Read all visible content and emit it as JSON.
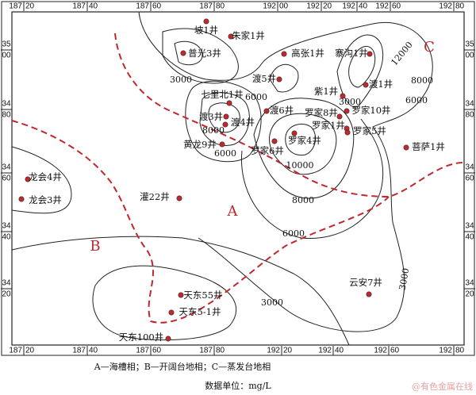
{
  "map": {
    "frame_labels": {
      "top": [
        {
          "deg": "187",
          "min": "20"
        },
        {
          "deg": "187",
          "min": "40"
        },
        {
          "deg": "187",
          "min": "60"
        },
        {
          "deg": "187",
          "min": "80"
        },
        {
          "deg": "192",
          "min": "00"
        },
        {
          "deg": "192",
          "min": "20"
        },
        {
          "deg": "192",
          "min": "40"
        },
        {
          "deg": "192",
          "min": "60"
        },
        {
          "deg": "192",
          "min": "80"
        }
      ],
      "bottom": [
        {
          "deg": "187",
          "min": "20"
        },
        {
          "deg": "187",
          "min": "40"
        },
        {
          "deg": "187",
          "min": "60"
        },
        {
          "deg": "187",
          "min": "80"
        },
        {
          "deg": "192",
          "min": "20"
        },
        {
          "deg": "192",
          "min": "40"
        },
        {
          "deg": "192",
          "min": "60"
        },
        {
          "deg": "192",
          "min": "80"
        }
      ],
      "left": [
        {
          "deg": "35",
          "min": "00"
        },
        {
          "deg": "34",
          "min": "80"
        },
        {
          "deg": "34",
          "min": "60"
        },
        {
          "deg": "34",
          "min": "40"
        },
        {
          "deg": "34",
          "min": "20"
        }
      ],
      "right": [
        {
          "deg": "35",
          "min": "00"
        },
        {
          "deg": "34",
          "min": "80"
        },
        {
          "deg": "34",
          "min": "60"
        },
        {
          "deg": "34",
          "min": "40"
        },
        {
          "deg": "34",
          "min": "20"
        }
      ]
    },
    "wells": [
      "坡1井",
      "朱家1井",
      "普光3井",
      "高张1井",
      "寨沟1井",
      "渡5井",
      "紫1井",
      "渡1井",
      "七里北1井",
      "渡3井",
      "渡4井",
      "渡6井",
      "罗家8井",
      "罗家10井",
      "罗家1井",
      "罗家5井",
      "罗家4井",
      "黄龙9井",
      "罗家6井",
      "菩萨1井",
      "龙会4井",
      "龙会3井",
      "灌22井",
      "天东55井",
      "天东5-1井",
      "天东100井",
      "云安7井"
    ],
    "contour_labels": [
      "3000",
      "6000",
      "8000",
      "6000",
      "10000",
      "8000",
      "6000",
      "3000",
      "3000",
      "8000",
      "6000",
      "12000",
      "3000"
    ],
    "zones": [
      "A",
      "B",
      "C"
    ]
  },
  "legend": {
    "caption": "A—海槽相；B—开阔台地相；C—蒸发台地相",
    "unit": "数据单位：mg/L"
  },
  "watermark": "@有色金属在线"
}
